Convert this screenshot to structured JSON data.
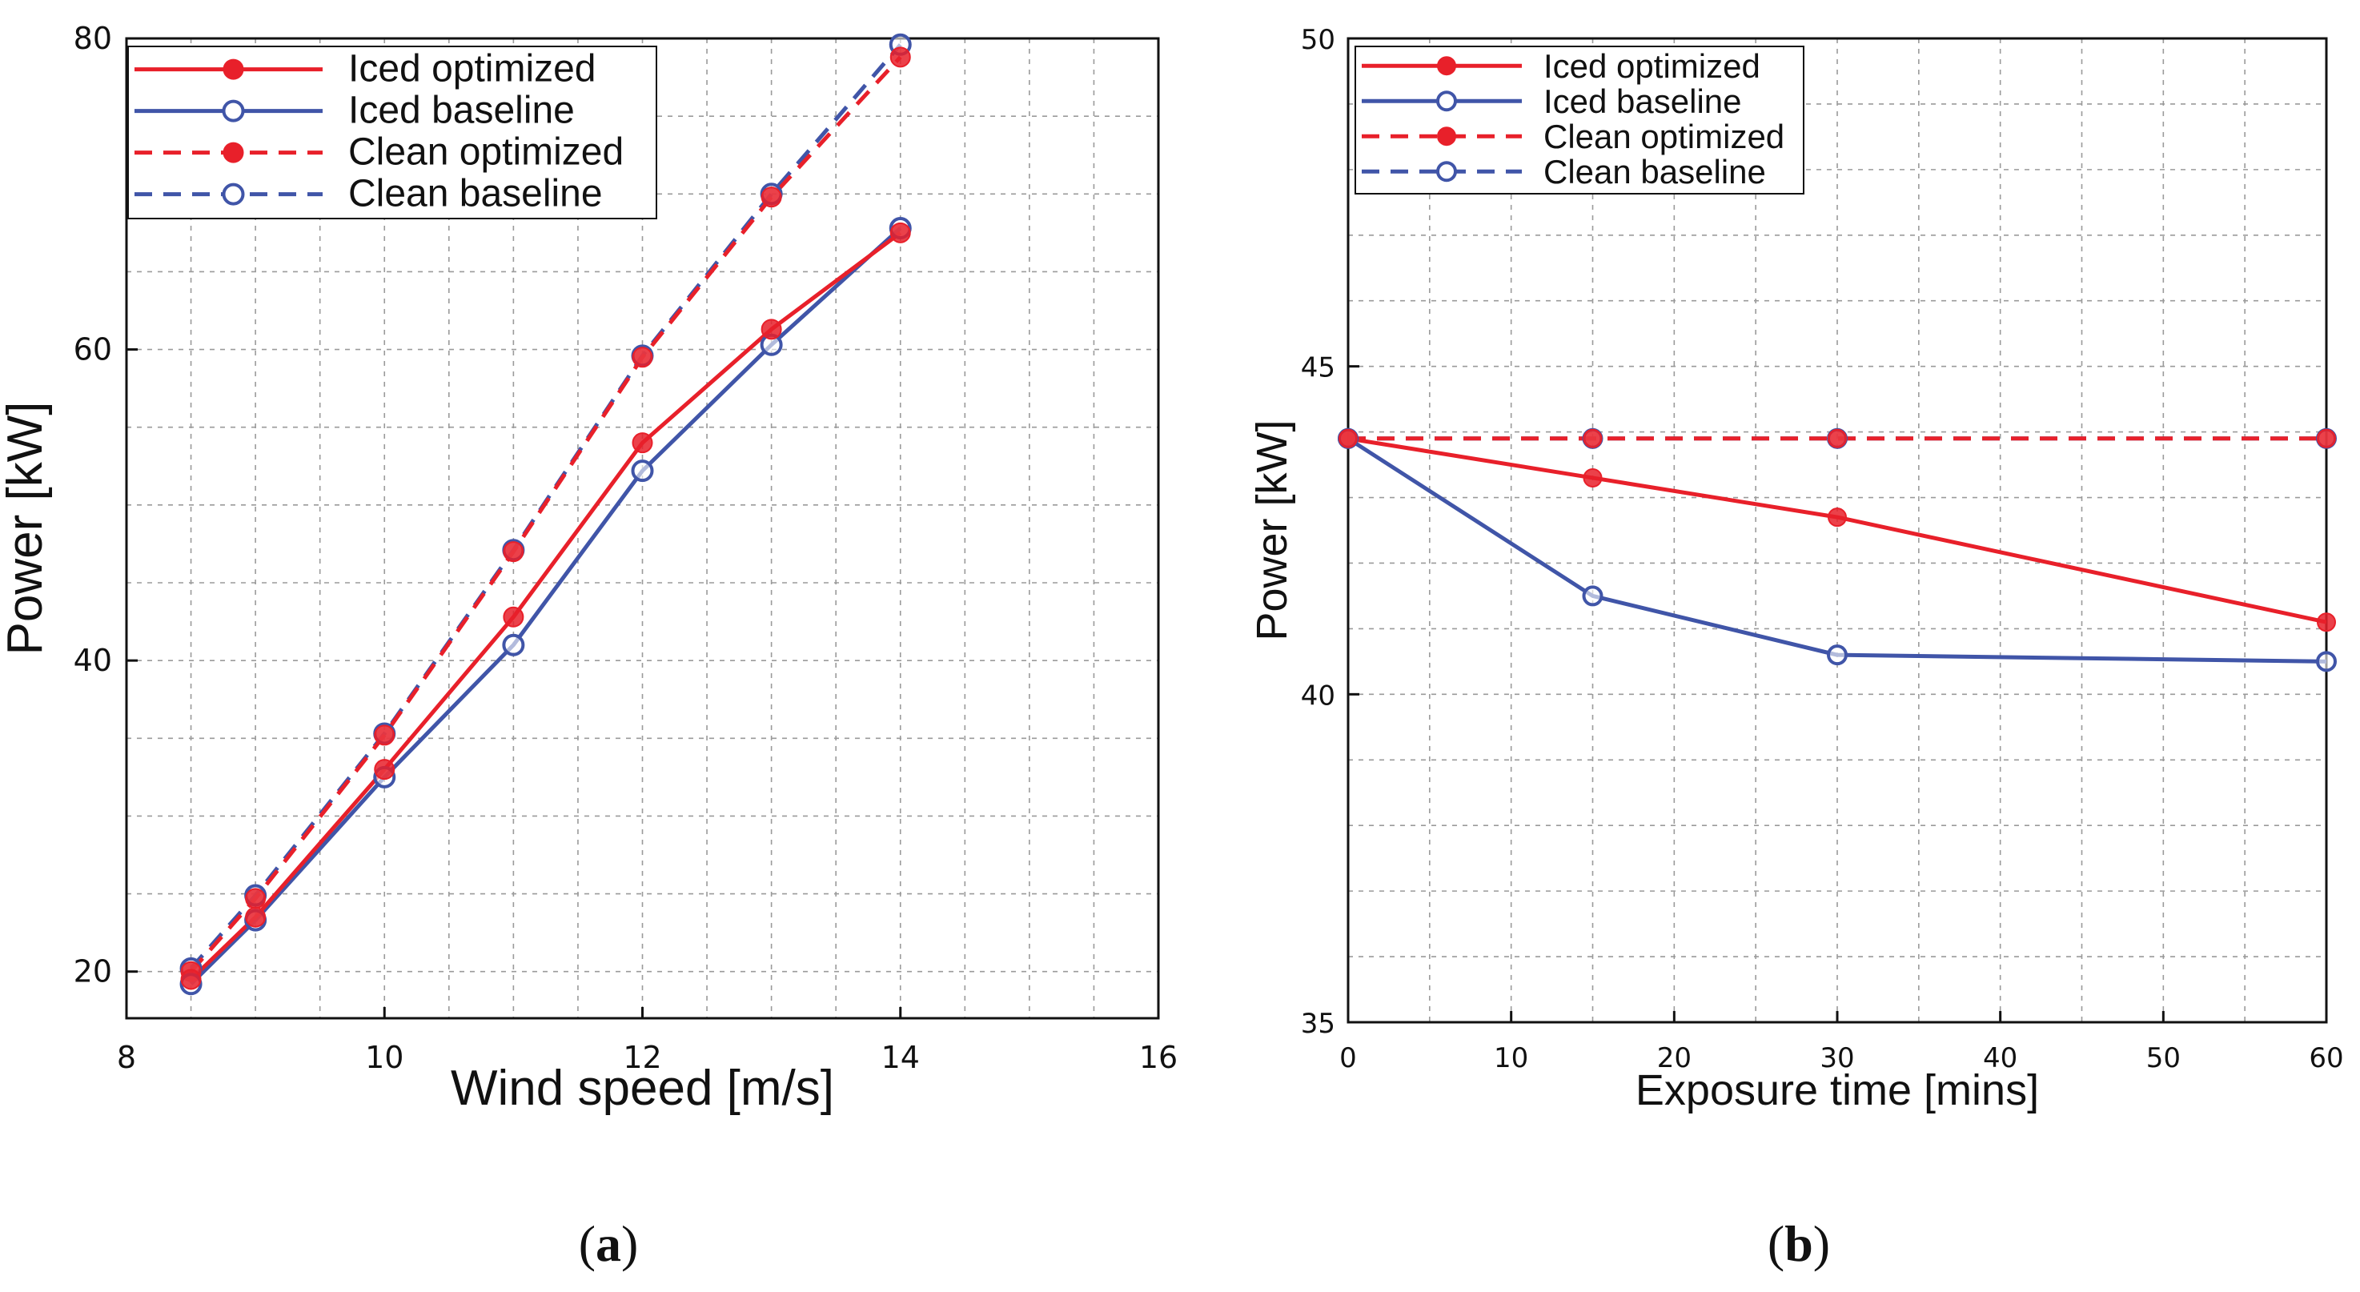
{
  "colors": {
    "red": "#e8202a",
    "blue": "#4055a8",
    "purple": "#7a4a8c",
    "grid": "#9a9a9a",
    "axis": "#111111"
  },
  "panels": [
    {
      "label_open": "(",
      "label_letter": "a",
      "label_close": ")"
    },
    {
      "label_open": "(",
      "label_letter": "b",
      "label_close": ")"
    }
  ],
  "chart_data": [
    {
      "type": "line",
      "xlabel": "Wind speed [m/s]",
      "ylabel": "Power [kW]",
      "xlim": [
        8,
        16
      ],
      "ylim": [
        17,
        80
      ],
      "xticks": [
        8,
        10,
        12,
        14,
        16
      ],
      "yticks": [
        20,
        40,
        60,
        80
      ],
      "x_grid_step": 0.5,
      "y_grid_step": 5,
      "legend_position": "top-left",
      "series": [
        {
          "name": "Iced optimized",
          "style": "solid",
          "color": "red",
          "marker": "filled",
          "x": [
            8.5,
            9,
            10,
            11,
            12,
            13,
            14
          ],
          "y": [
            19.5,
            23.5,
            33.0,
            42.8,
            54.0,
            61.3,
            67.5
          ]
        },
        {
          "name": "Iced baseline",
          "style": "solid",
          "color": "blue",
          "marker": "open",
          "x": [
            8.5,
            9,
            10,
            11,
            12,
            13,
            14
          ],
          "y": [
            19.2,
            23.3,
            32.5,
            41.0,
            52.2,
            60.3,
            67.8
          ]
        },
        {
          "name": "Clean optimized",
          "style": "dashed",
          "color": "red",
          "marker": "filled",
          "x": [
            8.5,
            9,
            10,
            11,
            12,
            13,
            14
          ],
          "y": [
            20.0,
            24.7,
            35.2,
            47.0,
            59.5,
            69.8,
            78.8
          ]
        },
        {
          "name": "Clean baseline",
          "style": "dashed",
          "color": "blue",
          "marker": "open",
          "x": [
            8.5,
            9,
            10,
            11,
            12,
            13,
            14
          ],
          "y": [
            20.2,
            24.9,
            35.3,
            47.1,
            59.6,
            70.0,
            79.6
          ]
        }
      ]
    },
    {
      "type": "line",
      "xlabel": "Exposure time [mins]",
      "ylabel": "Power [kW]",
      "xlim": [
        0,
        60
      ],
      "ylim": [
        35,
        50
      ],
      "xticks": [
        0,
        10,
        20,
        30,
        40,
        50,
        60
      ],
      "yticks": [
        35,
        40,
        45,
        50
      ],
      "x_grid_step": 5,
      "y_grid_step": 1,
      "legend_position": "top-left",
      "series": [
        {
          "name": "Iced optimized",
          "style": "solid",
          "color": "red",
          "marker": "filled",
          "x": [
            0,
            15,
            30,
            60
          ],
          "y": [
            43.9,
            43.3,
            42.7,
            41.1
          ]
        },
        {
          "name": "Iced baseline",
          "style": "solid",
          "color": "blue",
          "marker": "open",
          "x": [
            0,
            15,
            30,
            60
          ],
          "y": [
            43.9,
            41.5,
            40.6,
            40.5
          ]
        },
        {
          "name": "Clean optimized",
          "style": "dashed",
          "color": "red",
          "marker": "filled",
          "x": [
            0,
            15,
            30,
            60
          ],
          "y": [
            43.9,
            43.9,
            43.9,
            43.9
          ]
        },
        {
          "name": "Clean baseline",
          "style": "dashed",
          "color": "blue",
          "marker": "open",
          "x": [
            0,
            15,
            30,
            60
          ],
          "y": [
            43.9,
            43.9,
            43.9,
            43.9
          ]
        }
      ]
    }
  ]
}
